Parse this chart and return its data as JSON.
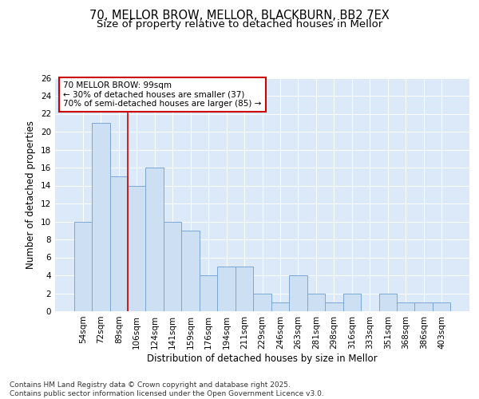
{
  "title_line1": "70, MELLOR BROW, MELLOR, BLACKBURN, BB2 7EX",
  "title_line2": "Size of property relative to detached houses in Mellor",
  "xlabel": "Distribution of detached houses by size in Mellor",
  "ylabel": "Number of detached properties",
  "categories": [
    "54sqm",
    "72sqm",
    "89sqm",
    "106sqm",
    "124sqm",
    "141sqm",
    "159sqm",
    "176sqm",
    "194sqm",
    "211sqm",
    "229sqm",
    "246sqm",
    "263sqm",
    "281sqm",
    "298sqm",
    "316sqm",
    "333sqm",
    "351sqm",
    "368sqm",
    "386sqm",
    "403sqm"
  ],
  "values": [
    10,
    21,
    15,
    14,
    16,
    10,
    9,
    4,
    5,
    5,
    2,
    1,
    4,
    2,
    1,
    2,
    0,
    2,
    1,
    1,
    1
  ],
  "bar_color": "#ccdff3",
  "bar_edge_color": "#7ba7d4",
  "vline_x_index": 2.5,
  "vline_color": "#cc0000",
  "annotation_text": "70 MELLOR BROW: 99sqm\n← 30% of detached houses are smaller (37)\n70% of semi-detached houses are larger (85) →",
  "annotation_box_color": "#ffffff",
  "annotation_box_edge": "#cc0000",
  "ylim": [
    0,
    26
  ],
  "yticks": [
    0,
    2,
    4,
    6,
    8,
    10,
    12,
    14,
    16,
    18,
    20,
    22,
    24,
    26
  ],
  "bg_color": "#dce9f8",
  "fig_bg_color": "#ffffff",
  "footer_text": "Contains HM Land Registry data © Crown copyright and database right 2025.\nContains public sector information licensed under the Open Government Licence v3.0.",
  "title_fontsize": 10.5,
  "subtitle_fontsize": 9.5,
  "axis_label_fontsize": 8.5,
  "tick_fontsize": 7.5,
  "annotation_fontsize": 7.5,
  "footer_fontsize": 6.5
}
